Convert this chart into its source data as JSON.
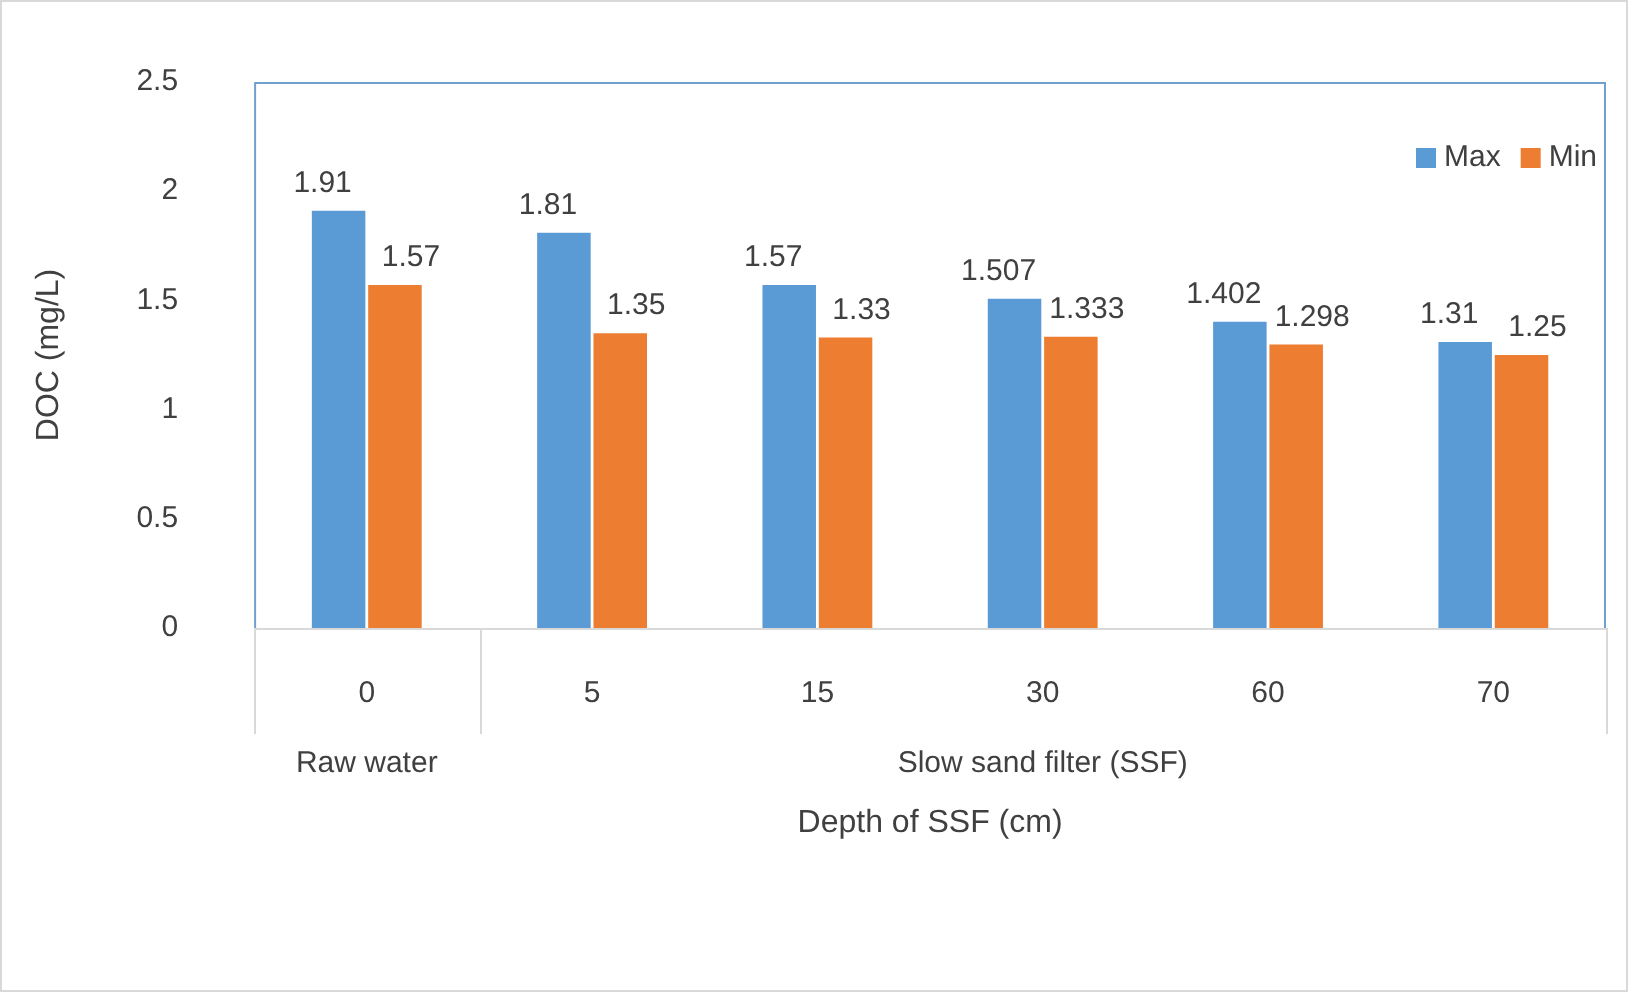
{
  "chart_data": {
    "type": "bar",
    "xlabel": "Depth of SSF (cm)",
    "ylabel": "DOC (mg/L)",
    "categories": [
      "0",
      "5",
      "15",
      "30",
      "60",
      "70"
    ],
    "series": [
      {
        "name": "Max",
        "color": "#5b9bd5",
        "values": [
          1.91,
          1.81,
          1.57,
          1.507,
          1.402,
          1.31
        ]
      },
      {
        "name": "Min",
        "color": "#ed7d31",
        "values": [
          1.57,
          1.35,
          1.33,
          1.333,
          1.298,
          1.25
        ]
      }
    ],
    "ylim": [
      0,
      2.5
    ],
    "yticks": [
      0,
      0.5,
      1,
      1.5,
      2,
      2.5
    ],
    "grid": false,
    "legend": "top right",
    "data_labels": true,
    "annotations": [
      "Raw water",
      "Slow sand filter (SSF)"
    ]
  }
}
